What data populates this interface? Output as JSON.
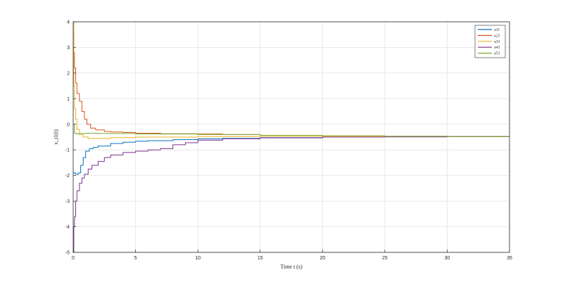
{
  "chart_data": {
    "type": "line",
    "title": "",
    "xlabel": "Time t (s)",
    "ylabel": "x_i1(t)",
    "xlim": [
      0,
      35
    ],
    "ylim": [
      -5,
      4
    ],
    "xticks": [
      "0",
      "5",
      "10",
      "15",
      "20",
      "25",
      "30",
      "35"
    ],
    "yticks": [
      "-5",
      "-4",
      "-3",
      "-2",
      "-1",
      "0",
      "1",
      "2",
      "3",
      "4"
    ],
    "grid": true,
    "legend_position": "top-right",
    "series": [
      {
        "name": "x11",
        "color": "#0072BD",
        "points": [
          [
            0,
            -1.9
          ],
          [
            0.2,
            -1.95
          ],
          [
            0.4,
            -1.9
          ],
          [
            0.6,
            -1.6
          ],
          [
            0.8,
            -1.3
          ],
          [
            1.0,
            -1.05
          ],
          [
            1.3,
            -0.95
          ],
          [
            1.6,
            -0.9
          ],
          [
            2,
            -0.85
          ],
          [
            3,
            -0.75
          ],
          [
            4,
            -0.7
          ],
          [
            5,
            -0.66
          ],
          [
            6,
            -0.64
          ],
          [
            8,
            -0.6
          ],
          [
            10,
            -0.57
          ],
          [
            12,
            -0.55
          ],
          [
            15,
            -0.52
          ],
          [
            20,
            -0.5
          ],
          [
            25,
            -0.49
          ],
          [
            30,
            -0.48
          ],
          [
            35,
            -0.48
          ]
        ]
      },
      {
        "name": "x21",
        "color": "#D95319",
        "points": [
          [
            0,
            3.6
          ],
          [
            0.05,
            2.8
          ],
          [
            0.1,
            2.2
          ],
          [
            0.2,
            1.6
          ],
          [
            0.3,
            1.2
          ],
          [
            0.5,
            0.9
          ],
          [
            0.7,
            0.5
          ],
          [
            0.9,
            0.2
          ],
          [
            1.1,
            0.0
          ],
          [
            1.4,
            -0.15
          ],
          [
            1.8,
            -0.22
          ],
          [
            2.5,
            -0.28
          ],
          [
            3,
            -0.3
          ],
          [
            4,
            -0.32
          ],
          [
            5,
            -0.35
          ],
          [
            7,
            -0.37
          ],
          [
            10,
            -0.38
          ],
          [
            12,
            -0.4
          ],
          [
            15,
            -0.43
          ],
          [
            20,
            -0.46
          ],
          [
            25,
            -0.47
          ],
          [
            30,
            -0.48
          ],
          [
            35,
            -0.48
          ]
        ]
      },
      {
        "name": "x31",
        "color": "#EDB120",
        "points": [
          [
            0,
            4.0
          ],
          [
            0.05,
            1.5
          ],
          [
            0.1,
            0.6
          ],
          [
            0.2,
            0.2
          ],
          [
            0.3,
            -0.2
          ],
          [
            0.5,
            -0.4
          ],
          [
            0.8,
            -0.5
          ],
          [
            1.2,
            -0.55
          ],
          [
            2,
            -0.55
          ],
          [
            3,
            -0.52
          ],
          [
            5,
            -0.5
          ],
          [
            10,
            -0.48
          ],
          [
            15,
            -0.47
          ],
          [
            20,
            -0.47
          ],
          [
            25,
            -0.48
          ],
          [
            30,
            -0.48
          ],
          [
            35,
            -0.48
          ]
        ]
      },
      {
        "name": "x41",
        "color": "#7E2F8E",
        "points": [
          [
            0,
            -5.0
          ],
          [
            0.05,
            -4.0
          ],
          [
            0.1,
            -3.6
          ],
          [
            0.2,
            -3.0
          ],
          [
            0.3,
            -2.6
          ],
          [
            0.5,
            -2.3
          ],
          [
            0.7,
            -2.1
          ],
          [
            0.9,
            -1.95
          ],
          [
            1.2,
            -1.75
          ],
          [
            1.5,
            -1.6
          ],
          [
            2,
            -1.45
          ],
          [
            2.5,
            -1.3
          ],
          [
            3,
            -1.2
          ],
          [
            4,
            -1.1
          ],
          [
            5,
            -1.05
          ],
          [
            6,
            -1.0
          ],
          [
            7,
            -0.95
          ],
          [
            8,
            -0.8
          ],
          [
            9,
            -0.72
          ],
          [
            10,
            -0.62
          ],
          [
            12,
            -0.57
          ],
          [
            15,
            -0.53
          ],
          [
            20,
            -0.5
          ],
          [
            25,
            -0.49
          ],
          [
            30,
            -0.48
          ],
          [
            35,
            -0.48
          ]
        ]
      },
      {
        "name": "x51",
        "color": "#77AC30",
        "points": [
          [
            0,
            0.0
          ],
          [
            0.1,
            -0.35
          ],
          [
            0.3,
            -0.38
          ],
          [
            0.5,
            -0.36
          ],
          [
            1,
            -0.35
          ],
          [
            2,
            -0.36
          ],
          [
            5,
            -0.38
          ],
          [
            10,
            -0.4
          ],
          [
            15,
            -0.43
          ],
          [
            20,
            -0.45
          ],
          [
            25,
            -0.47
          ],
          [
            30,
            -0.48
          ],
          [
            35,
            -0.48
          ]
        ]
      }
    ]
  }
}
